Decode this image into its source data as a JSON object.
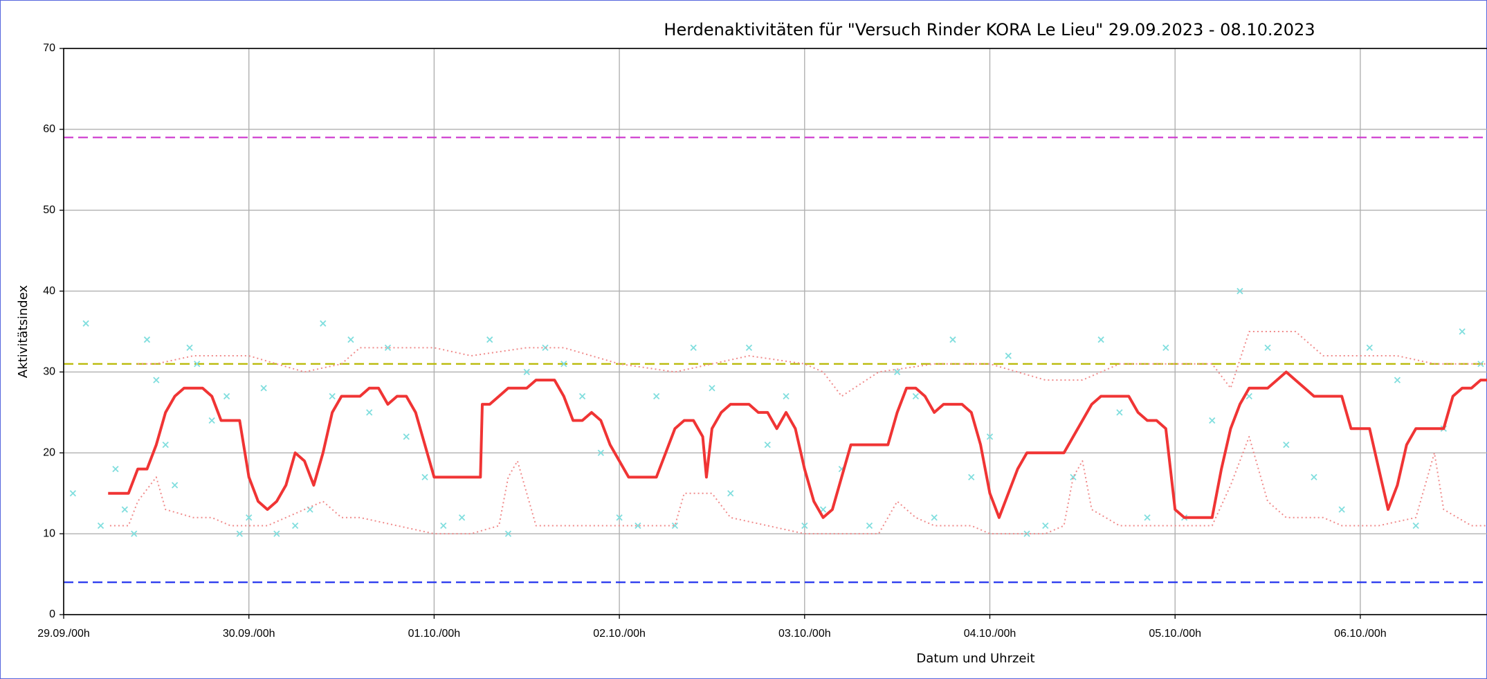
{
  "chart_data": {
    "type": "line",
    "title": "Herdenaktivitäten für \"Versuch Rinder KORA Le Lieu\"  29.09.2023 - 08.10.2023",
    "xlabel": "Datum und Uhrzeit",
    "ylabel": "Aktivitätsindex",
    "xlim": [
      0,
      10
    ],
    "ylim": [
      0,
      70
    ],
    "xticks": [
      {
        "value": 0,
        "label": "29.09./00h"
      },
      {
        "value": 1,
        "label": "30.09./00h"
      },
      {
        "value": 2,
        "label": "01.10./00h"
      },
      {
        "value": 3,
        "label": "02.10./00h"
      },
      {
        "value": 4,
        "label": "03.10./00h"
      },
      {
        "value": 5,
        "label": "04.10./00h"
      },
      {
        "value": 6,
        "label": "05.10./00h"
      },
      {
        "value": 7,
        "label": "06.10./00h"
      }
    ],
    "yticks": [
      0,
      10,
      20,
      30,
      40,
      50,
      60,
      70
    ],
    "grid": true,
    "reference_lines": [
      {
        "value": 59,
        "color": "#cc33cc"
      },
      {
        "value": 31,
        "color": "#b8b800"
      },
      {
        "value": 4,
        "color": "#2233ee"
      }
    ],
    "series": [
      {
        "type": "scatter",
        "color": "#80dede",
        "x": [
          0.05,
          0.12,
          0.2,
          0.28,
          0.33,
          0.38,
          0.45,
          0.5,
          0.55,
          0.6,
          0.68,
          0.72,
          0.8,
          0.88,
          0.95,
          1.0,
          1.08,
          1.15,
          1.25,
          1.33,
          1.4,
          1.45,
          1.55,
          1.65,
          1.75,
          1.85,
          1.95,
          2.05,
          2.15,
          2.3,
          2.4,
          2.5,
          2.6,
          2.7,
          2.8,
          2.9,
          3.0,
          3.1,
          3.2,
          3.3,
          3.4,
          3.5,
          3.6,
          3.7,
          3.8,
          3.9,
          4.0,
          4.1,
          4.2,
          4.35,
          4.5,
          4.6,
          4.7,
          4.8,
          4.9,
          5.0,
          5.1,
          5.2,
          5.3,
          5.45,
          5.6,
          5.7,
          5.85,
          5.95,
          6.05,
          6.2,
          6.35,
          6.4,
          6.5,
          6.6,
          6.75,
          6.9,
          7.05,
          7.2,
          7.3,
          7.45,
          7.55,
          7.65
        ],
        "values": [
          15,
          36,
          11,
          18,
          13,
          10,
          34,
          29,
          21,
          16,
          33,
          31,
          24,
          27,
          10,
          12,
          28,
          10,
          11,
          13,
          36,
          27,
          34,
          25,
          33,
          22,
          17,
          11,
          12,
          34,
          10,
          30,
          33,
          31,
          27,
          20,
          12,
          11,
          27,
          11,
          33,
          28,
          15,
          33,
          21,
          27,
          11,
          13,
          18,
          11,
          30,
          27,
          12,
          34,
          17,
          22,
          32,
          10,
          11,
          17,
          34,
          25,
          12,
          33,
          12,
          24,
          40,
          27,
          33,
          21,
          17,
          13,
          33,
          29,
          11,
          23,
          35,
          31
        ]
      },
      {
        "type": "line",
        "color": "#f08a8a",
        "dash": "2,4",
        "width": 2,
        "x": [
          0.4,
          0.5,
          0.7,
          1.0,
          1.3,
          1.5,
          1.6,
          2.0,
          2.2,
          2.5,
          2.7,
          3.0,
          3.3,
          3.5,
          3.7,
          4.0,
          4.1,
          4.2,
          4.4,
          4.7,
          5.0,
          5.3,
          5.5,
          5.7,
          6.0,
          6.2,
          6.3,
          6.4,
          6.65,
          6.8,
          7.0,
          7.2,
          7.4,
          7.7
        ],
        "values": [
          31,
          31,
          32,
          32,
          30,
          31,
          33,
          33,
          32,
          33,
          33,
          31,
          30,
          31,
          32,
          31,
          30,
          27,
          30,
          31,
          31,
          29,
          29,
          31,
          31,
          31,
          28,
          35,
          35,
          32,
          32,
          32,
          31,
          31
        ]
      },
      {
        "type": "line",
        "color": "#f08a8a",
        "dash": "2,4",
        "width": 2,
        "x": [
          0.25,
          0.35,
          0.4,
          0.5,
          0.55,
          0.7,
          0.8,
          0.9,
          1.1,
          1.2,
          1.4,
          1.5,
          1.6,
          1.8,
          2.0,
          2.2,
          2.35,
          2.4,
          2.45,
          2.5,
          2.55,
          3.0,
          3.3,
          3.35,
          3.5,
          3.6,
          3.8,
          4.0,
          4.4,
          4.5,
          4.6,
          4.7,
          4.9,
          5.0,
          5.3,
          5.4,
          5.45,
          5.5,
          5.55,
          5.7,
          6.0,
          6.2,
          6.3,
          6.4,
          6.5,
          6.6,
          6.8,
          6.9,
          7.1,
          7.3,
          7.4,
          7.45,
          7.6,
          7.7
        ],
        "values": [
          11,
          11,
          14,
          17,
          13,
          12,
          12,
          11,
          11,
          12,
          14,
          12,
          12,
          11,
          10,
          10,
          11,
          17,
          19,
          15,
          11,
          11,
          11,
          15,
          15,
          12,
          11,
          10,
          10,
          14,
          12,
          11,
          11,
          10,
          10,
          11,
          17,
          19,
          13,
          11,
          11,
          11,
          16,
          22,
          14,
          12,
          12,
          11,
          11,
          12,
          20,
          13,
          11,
          11
        ]
      },
      {
        "type": "line",
        "color": "#f03434",
        "width": 4,
        "x": [
          0.24,
          0.35,
          0.4,
          0.45,
          0.5,
          0.55,
          0.6,
          0.65,
          0.7,
          0.75,
          0.8,
          0.85,
          0.9,
          0.95,
          1.0,
          1.05,
          1.1,
          1.15,
          1.2,
          1.25,
          1.3,
          1.35,
          1.4,
          1.45,
          1.5,
          1.55,
          1.6,
          1.65,
          1.7,
          1.75,
          1.8,
          1.85,
          1.9,
          1.95,
          2.0,
          2.1,
          2.2,
          2.25,
          2.26,
          2.3,
          2.35,
          2.4,
          2.45,
          2.5,
          2.55,
          2.6,
          2.65,
          2.7,
          2.75,
          2.8,
          2.85,
          2.9,
          2.95,
          3.0,
          3.05,
          3.1,
          3.15,
          3.2,
          3.25,
          3.3,
          3.35,
          3.4,
          3.45,
          3.47,
          3.5,
          3.55,
          3.6,
          3.65,
          3.7,
          3.75,
          3.8,
          3.85,
          3.9,
          3.95,
          4.0,
          4.05,
          4.1,
          4.15,
          4.2,
          4.25,
          4.3,
          4.35,
          4.4,
          4.45,
          4.5,
          4.55,
          4.6,
          4.65,
          4.7,
          4.75,
          4.8,
          4.85,
          4.9,
          4.95,
          5.0,
          5.05,
          5.1,
          5.15,
          5.2,
          5.25,
          5.3,
          5.35,
          5.4,
          5.45,
          5.5,
          5.55,
          5.6,
          5.65,
          5.7,
          5.75,
          5.8,
          5.85,
          5.9,
          5.95,
          6.0,
          6.05,
          6.1,
          6.15,
          6.2,
          6.25,
          6.3,
          6.35,
          6.4,
          6.45,
          6.5,
          6.55,
          6.6,
          6.65,
          6.7,
          6.75,
          6.8,
          6.85,
          6.9,
          6.95,
          7.0,
          7.05,
          7.1,
          7.15,
          7.2,
          7.25,
          7.3,
          7.35,
          7.4,
          7.45,
          7.5,
          7.55,
          7.6,
          7.65,
          7.7
        ],
        "values": [
          15,
          15,
          18,
          18,
          21,
          25,
          27,
          28,
          28,
          28,
          27,
          24,
          24,
          24,
          17,
          14,
          13,
          14,
          16,
          20,
          19,
          16,
          20,
          25,
          27,
          27,
          27,
          28,
          28,
          26,
          27,
          27,
          25,
          21,
          17,
          17,
          17,
          17,
          26,
          26,
          27,
          28,
          28,
          28,
          29,
          29,
          29,
          27,
          24,
          24,
          25,
          24,
          21,
          19,
          17,
          17,
          17,
          17,
          20,
          23,
          24,
          24,
          22,
          17,
          23,
          25,
          26,
          26,
          26,
          25,
          25,
          23,
          25,
          23,
          18,
          14,
          12,
          13,
          17,
          21,
          21,
          21,
          21,
          21,
          25,
          28,
          28,
          27,
          25,
          26,
          26,
          26,
          25,
          21,
          15,
          12,
          15,
          18,
          20,
          20,
          20,
          20,
          20,
          22,
          24,
          26,
          27,
          27,
          27,
          27,
          25,
          24,
          24,
          23,
          13,
          12,
          12,
          12,
          12,
          18,
          23,
          26,
          28,
          28,
          28,
          29,
          30,
          29,
          28,
          27,
          27,
          27,
          27,
          23,
          23,
          23,
          18,
          13,
          16,
          21,
          23,
          23,
          23,
          23,
          27,
          28,
          28,
          29,
          29
        ]
      }
    ]
  }
}
